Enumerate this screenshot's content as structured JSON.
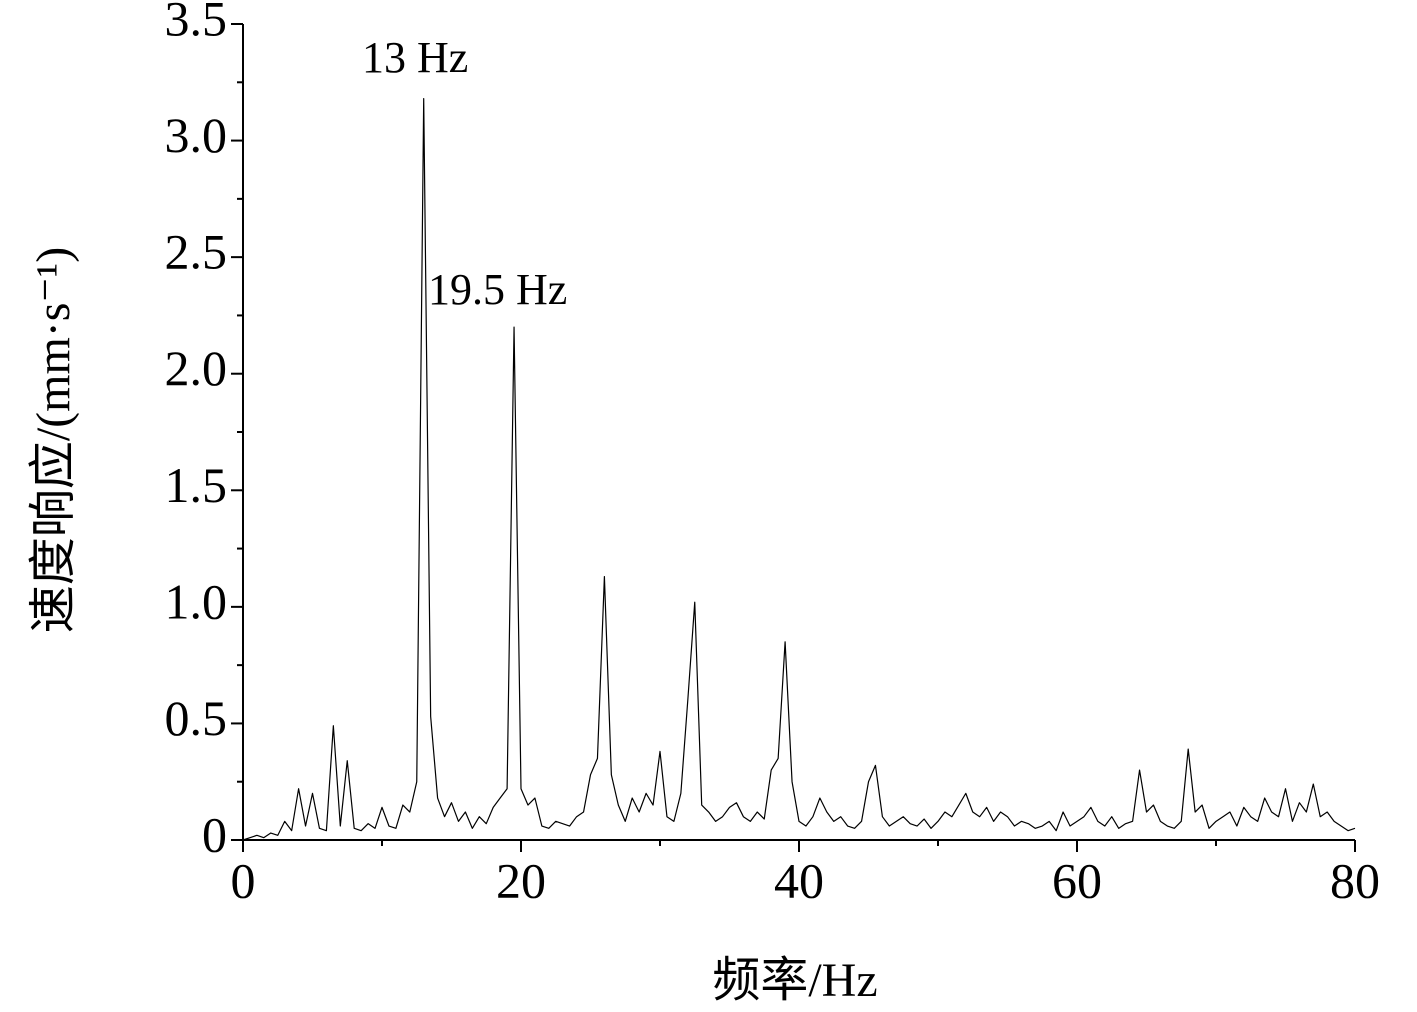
{
  "chart_data": {
    "type": "line",
    "xlabel": "频率/Hz",
    "ylabel": "速度响应/(mm·s⁻¹)",
    "annotations": [
      "13 Hz",
      "19.5 Hz"
    ],
    "x": [
      0,
      0.5,
      1,
      1.5,
      2,
      2.5,
      3,
      3.5,
      4,
      4.5,
      5,
      5.5,
      6,
      6.5,
      7,
      7.5,
      8,
      8.5,
      9,
      9.5,
      10,
      10.5,
      11,
      11.5,
      12,
      12.5,
      13,
      13.5,
      14,
      14.5,
      15,
      15.5,
      16,
      16.5,
      17,
      17.5,
      18,
      18.5,
      19,
      19.5,
      20,
      20.5,
      21,
      21.5,
      22,
      22.5,
      23,
      23.5,
      24,
      24.5,
      25,
      25.5,
      26,
      26.5,
      27,
      27.5,
      28,
      28.5,
      29,
      29.5,
      30,
      30.5,
      31,
      31.5,
      32,
      32.5,
      33,
      33.5,
      34,
      34.5,
      35,
      35.5,
      36,
      36.5,
      37,
      37.5,
      38,
      38.5,
      39,
      39.5,
      40,
      40.5,
      41,
      41.5,
      42,
      42.5,
      43,
      43.5,
      44,
      44.5,
      45,
      45.5,
      46,
      46.5,
      47,
      47.5,
      48,
      48.5,
      49,
      49.5,
      50,
      50.5,
      51,
      51.5,
      52,
      52.5,
      53,
      53.5,
      54,
      54.5,
      55,
      55.5,
      56,
      56.5,
      57,
      57.5,
      58,
      58.5,
      59,
      59.5,
      60,
      60.5,
      61,
      61.5,
      62,
      62.5,
      63,
      63.5,
      64,
      64.5,
      65,
      65.5,
      66,
      66.5,
      67,
      67.5,
      68,
      68.5,
      69,
      69.5,
      70,
      70.5,
      71,
      71.5,
      72,
      72.5,
      73,
      73.5,
      74,
      74.5,
      75,
      75.5,
      76,
      76.5,
      77,
      77.5,
      78,
      78.5,
      79,
      79.5,
      80
    ],
    "series": [
      {
        "color": "#000000",
        "values": [
          0,
          0.01,
          0.02,
          0.01,
          0.03,
          0.02,
          0.08,
          0.04,
          0.22,
          0.06,
          0.2,
          0.05,
          0.04,
          0.49,
          0.06,
          0.34,
          0.05,
          0.04,
          0.07,
          0.05,
          0.14,
          0.06,
          0.05,
          0.15,
          0.12,
          0.25,
          3.18,
          0.53,
          0.18,
          0.1,
          0.16,
          0.08,
          0.12,
          0.05,
          0.1,
          0.07,
          0.14,
          0.18,
          0.22,
          2.2,
          0.22,
          0.15,
          0.18,
          0.06,
          0.05,
          0.08,
          0.07,
          0.06,
          0.1,
          0.12,
          0.28,
          0.35,
          1.13,
          0.28,
          0.15,
          0.08,
          0.18,
          0.12,
          0.2,
          0.15,
          0.38,
          0.1,
          0.08,
          0.2,
          0.6,
          1.02,
          0.15,
          0.12,
          0.08,
          0.1,
          0.14,
          0.16,
          0.1,
          0.08,
          0.12,
          0.09,
          0.3,
          0.35,
          0.85,
          0.25,
          0.08,
          0.06,
          0.1,
          0.18,
          0.12,
          0.08,
          0.1,
          0.06,
          0.05,
          0.08,
          0.25,
          0.32,
          0.1,
          0.06,
          0.08,
          0.1,
          0.07,
          0.06,
          0.09,
          0.05,
          0.08,
          0.12,
          0.1,
          0.15,
          0.2,
          0.12,
          0.1,
          0.14,
          0.08,
          0.12,
          0.1,
          0.06,
          0.08,
          0.07,
          0.05,
          0.06,
          0.08,
          0.04,
          0.12,
          0.06,
          0.08,
          0.1,
          0.14,
          0.08,
          0.06,
          0.1,
          0.05,
          0.07,
          0.08,
          0.3,
          0.12,
          0.15,
          0.08,
          0.06,
          0.05,
          0.08,
          0.39,
          0.12,
          0.15,
          0.05,
          0.08,
          0.1,
          0.12,
          0.06,
          0.14,
          0.1,
          0.08,
          0.18,
          0.12,
          0.1,
          0.22,
          0.08,
          0.16,
          0.12,
          0.24,
          0.1,
          0.12,
          0.08,
          0.06,
          0.04,
          0.05
        ]
      }
    ],
    "xlim": [
      0,
      80
    ],
    "ylim": [
      0,
      3.5
    ],
    "xticks": [
      0,
      20,
      40,
      60,
      80
    ],
    "xticks_minor": [
      10,
      30,
      50,
      70
    ],
    "yticks": [
      0,
      0.5,
      {
        "value": 1,
        "label": "1.0"
      },
      1.5,
      {
        "value": 2,
        "label": "2.0"
      },
      2.5,
      {
        "value": 3,
        "label": "3.0"
      },
      3.5
    ],
    "yticks_minor": [
      0.25,
      0.75,
      1.25,
      1.75,
      2.25,
      2.75,
      3.25
    ],
    "grid": false
  }
}
